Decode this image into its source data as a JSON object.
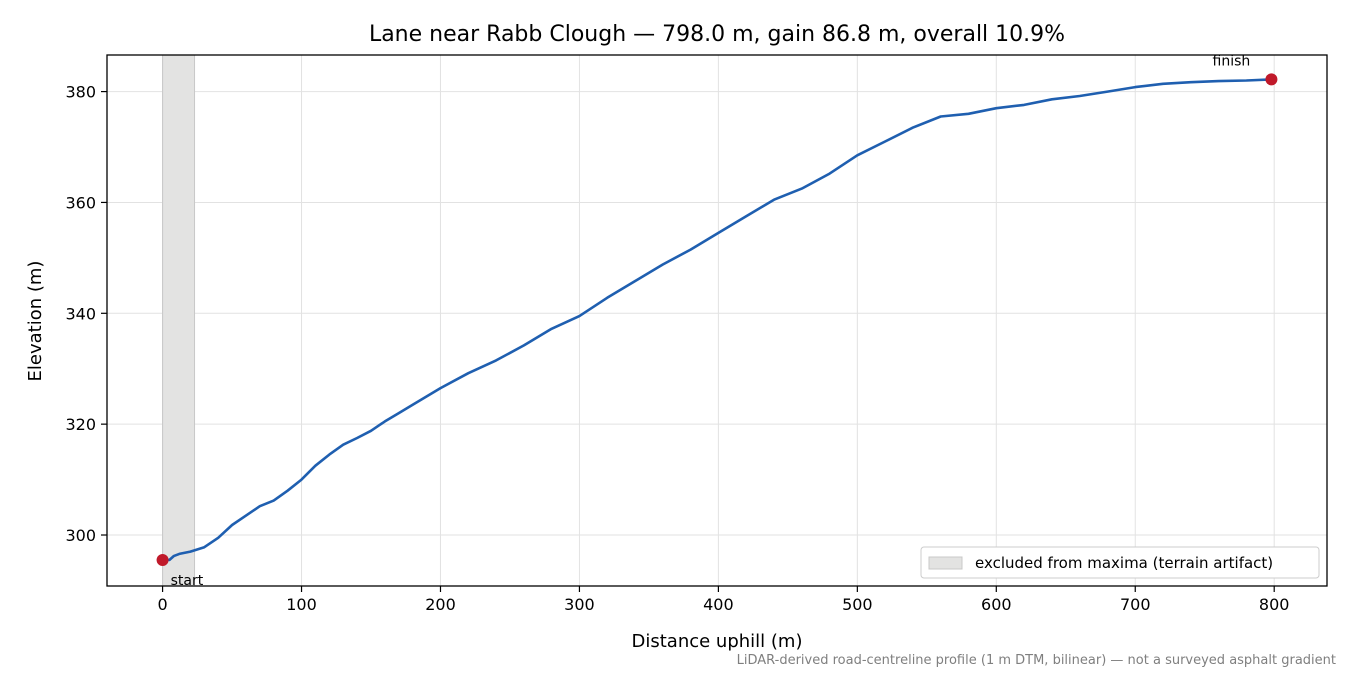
{
  "chart_data": {
    "type": "line",
    "title": "Lane near Rabb Clough — 798.0 m, gain 86.8 m, overall 10.9%",
    "xlabel": "Distance uphill (m)",
    "ylabel": "Elevation (m)",
    "footnote": "LiDAR-derived road-centreline profile (1 m DTM, bilinear) — not a surveyed asphalt gradient",
    "xlim": [
      -40,
      838
    ],
    "ylim": [
      290.8,
      386.6
    ],
    "x_ticks": [
      0,
      100,
      200,
      300,
      400,
      500,
      600,
      700,
      800
    ],
    "x_tick_labels": [
      "0",
      "100",
      "200",
      "300",
      "400",
      "500",
      "600",
      "700",
      "800"
    ],
    "y_ticks": [
      300,
      320,
      340,
      360,
      380
    ],
    "y_tick_labels": [
      "300",
      "320",
      "340",
      "360",
      "380"
    ],
    "grid": true,
    "series": [
      {
        "color": "#1f5fb0",
        "x": [
          0,
          5,
          8,
          12,
          20,
          30,
          40,
          50,
          60,
          70,
          80,
          90,
          100,
          110,
          120,
          130,
          140,
          150,
          160,
          170,
          180,
          200,
          220,
          240,
          260,
          280,
          300,
          320,
          340,
          360,
          380,
          400,
          420,
          440,
          460,
          480,
          500,
          520,
          540,
          560,
          580,
          600,
          620,
          640,
          660,
          680,
          700,
          720,
          740,
          760,
          780,
          798
        ],
        "y": [
          295.5,
          295.5,
          296.2,
          296.6,
          297.0,
          297.8,
          299.5,
          301.8,
          303.5,
          305.2,
          306.2,
          308.0,
          310.0,
          312.5,
          314.5,
          316.3,
          317.5,
          318.8,
          320.5,
          322.0,
          323.5,
          326.5,
          329.2,
          331.5,
          334.2,
          337.2,
          339.5,
          342.8,
          345.8,
          348.8,
          351.5,
          354.5,
          357.5,
          360.5,
          362.5,
          365.2,
          368.5,
          371.0,
          373.5,
          375.5,
          376.0,
          377.0,
          377.6,
          378.6,
          379.2,
          380.0,
          380.8,
          381.4,
          381.7,
          381.9,
          382.0,
          382.2
        ]
      }
    ],
    "markers": [
      {
        "label": "start",
        "x": 0,
        "y": 295.5,
        "color": "#c0192a"
      },
      {
        "label": "finish",
        "x": 798,
        "y": 382.2,
        "color": "#c0192a"
      }
    ],
    "shaded_span": {
      "x": [
        0,
        23
      ],
      "color": "#e3e3e2",
      "edge": "#c8c8c8"
    },
    "legend": {
      "position": "lower-right",
      "entries": [
        "excluded from maxima (terrain artifact)"
      ]
    }
  }
}
